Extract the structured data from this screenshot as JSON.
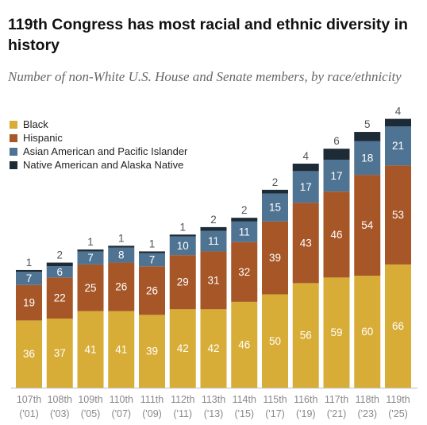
{
  "title": "119th Congress has most racial and ethnic diversity in history",
  "subtitle": "Number of non-White U.S. House and Senate members, by race/ethnicity",
  "colors": {
    "black": "#D8AD37",
    "hispanic": "#A65627",
    "asian": "#4F7493",
    "native": "#1D2B36",
    "axis_label": "#888888",
    "total_label": "#555555"
  },
  "chart_data": {
    "type": "bar",
    "stacked": true,
    "title": "119th Congress has most racial and ethnic diversity in history",
    "subtitle": "Number of non-White U.S. House and Senate members, by race/ethnicity",
    "xlabel": "",
    "ylabel": "",
    "ylim": [
      0,
      148
    ],
    "grid": false,
    "legend_position": "top-left",
    "categories": [
      {
        "congress": "107th",
        "year": "('01)"
      },
      {
        "congress": "108th",
        "year": "('03)"
      },
      {
        "congress": "109th",
        "year": "('05)"
      },
      {
        "congress": "110th",
        "year": "('07)"
      },
      {
        "congress": "111th",
        "year": "('09)"
      },
      {
        "congress": "112th",
        "year": "('11)"
      },
      {
        "congress": "113th",
        "year": "('13)"
      },
      {
        "congress": "114th",
        "year": "('15)"
      },
      {
        "congress": "115th",
        "year": "('17)"
      },
      {
        "congress": "116th",
        "year": "('19)"
      },
      {
        "congress": "117th",
        "year": "('21)"
      },
      {
        "congress": "118th",
        "year": "('23)"
      },
      {
        "congress": "119th",
        "year": "('25)"
      }
    ],
    "series": [
      {
        "key": "black",
        "name": "Black",
        "values": [
          36,
          37,
          41,
          41,
          39,
          42,
          42,
          46,
          50,
          56,
          59,
          60,
          66
        ]
      },
      {
        "key": "hispanic",
        "name": "Hispanic",
        "values": [
          19,
          22,
          25,
          26,
          26,
          29,
          31,
          32,
          39,
          43,
          46,
          54,
          53
        ]
      },
      {
        "key": "asian",
        "name": "Asian American and Pacific Islander",
        "values": [
          7,
          6,
          7,
          8,
          7,
          10,
          11,
          11,
          15,
          17,
          17,
          18,
          21
        ]
      },
      {
        "key": "native",
        "name": "Native American and Alaska Native",
        "values": [
          1,
          2,
          1,
          1,
          1,
          1,
          2,
          2,
          2,
          4,
          6,
          5,
          4
        ]
      }
    ]
  }
}
